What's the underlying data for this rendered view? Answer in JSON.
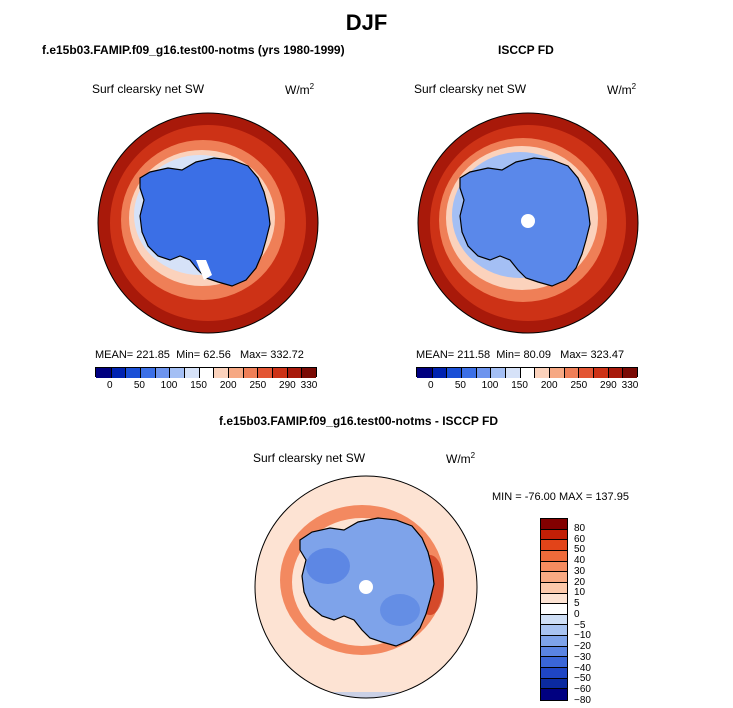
{
  "title": "DJF",
  "panels": [
    {
      "id": "model",
      "title": "f.e15b03.FAMIP.f09_g16.test00-notms (yrs 1980-1999)",
      "variable": "Surf clearsky net SW",
      "units": "W/m",
      "units_exp": "2",
      "stats": {
        "mean_label": "MEAN=",
        "mean": "221.85",
        "min_label": "Min=",
        "min": "62.56",
        "max_label": "Max=",
        "max": "332.72"
      }
    },
    {
      "id": "obs",
      "title": "ISCCP FD",
      "variable": "Surf clearsky net SW",
      "units": "W/m",
      "units_exp": "2",
      "stats": {
        "mean_label": "MEAN=",
        "mean": "211.58",
        "min_label": "Min=",
        "min": "80.09",
        "max_label": "Max=",
        "max": "323.47"
      }
    }
  ],
  "abs_colorbar": {
    "colors": [
      "#000080",
      "#0022b0",
      "#1a4fd6",
      "#3b6fe6",
      "#6d94ee",
      "#a4bff4",
      "#d6e2f8",
      "#ffffff",
      "#fbd2bc",
      "#f6a883",
      "#ef7f57",
      "#e35533",
      "#cd3216",
      "#a8190a",
      "#7a0a04"
    ],
    "labels": [
      "0",
      "50",
      "100",
      "150",
      "200",
      "250",
      "290",
      "330"
    ]
  },
  "diff_panel": {
    "title": "f.e15b03.FAMIP.f09_g16.test00-notms - ISCCP FD",
    "variable": "Surf clearsky net SW",
    "units": "W/m",
    "units_exp": "2",
    "stats": "MIN = -76.00  MAX = 137.95"
  },
  "diff_colorbar": {
    "colors": [
      "#820000",
      "#c21f06",
      "#e24419",
      "#ef6b3a",
      "#f68c5f",
      "#f9aa83",
      "#fcc9ab",
      "#fde3d3",
      "#ffffff",
      "#cfdff6",
      "#a8c3f1",
      "#7ea3ea",
      "#5a84e3",
      "#3a66d8",
      "#1f46c4",
      "#0b2aa0",
      "#000080"
    ],
    "labels": [
      "80",
      "60",
      "50",
      "40",
      "30",
      "20",
      "10",
      "5",
      "0",
      "−5",
      "−10",
      "−20",
      "−30",
      "−40",
      "−50",
      "−60",
      "−80"
    ]
  },
  "map_colors": {
    "land_outline": "#000000",
    "ocean_far": "#a8190a",
    "ocean_mid": "#cd3216",
    "ocean_near": "#ef7f57",
    "ice_edge": "#fbd2bc",
    "ice_pale": "#d6e2f8",
    "ice_blue": "#a4bff4",
    "interior": "#3b6fe6",
    "interior_obs": "#5a88ea",
    "diff_bg": "#fde3d3",
    "diff_red": "#ef6b3a",
    "diff_dark": "#c21f06",
    "diff_blue": "#7ea3ea",
    "diff_blue2": "#5a84e3"
  }
}
